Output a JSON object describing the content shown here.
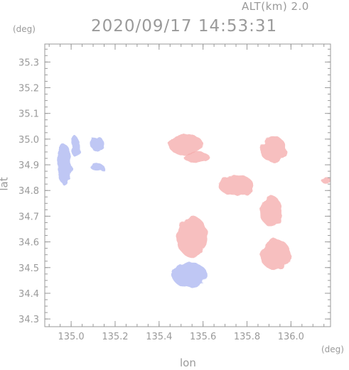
{
  "header": {
    "altitude_label": "ALT(km)  2.0",
    "timestamp": "2020/09/17 14:53:31"
  },
  "axes": {
    "y_unit": "(deg)",
    "x_unit": "(deg)",
    "x_title": "lon",
    "y_title": "lat"
  },
  "chart_data": {
    "type": "heatmap",
    "xlabel": "lon",
    "ylabel": "lat",
    "xlim": [
      134.88,
      136.18
    ],
    "ylim": [
      34.27,
      35.37
    ],
    "x_ticks": [
      135.0,
      135.2,
      135.4,
      135.6,
      135.8,
      136.0
    ],
    "x_tick_labels": [
      "135.0",
      "135.2",
      "135.4",
      "135.6",
      "135.8",
      "136.0"
    ],
    "y_ticks": [
      34.3,
      34.4,
      34.5,
      34.6,
      34.7,
      34.8,
      34.9,
      35.0,
      35.1,
      35.2,
      35.3
    ],
    "y_tick_labels": [
      "34.3",
      "34.4",
      "34.5",
      "34.6",
      "34.7",
      "34.8",
      "34.9",
      "35.0",
      "35.1",
      "35.2",
      "35.3"
    ],
    "grid": false,
    "colors": {
      "positive": "#f4a9a9",
      "negative": "#aab4f0"
    },
    "regions": [
      {
        "lon": 134.97,
        "lat": 34.9,
        "rlon": 0.03,
        "rlat": 0.08,
        "sign": "negative"
      },
      {
        "lon": 135.02,
        "lat": 34.97,
        "rlon": 0.02,
        "rlat": 0.04,
        "sign": "negative"
      },
      {
        "lon": 135.12,
        "lat": 34.98,
        "rlon": 0.03,
        "rlat": 0.03,
        "sign": "negative"
      },
      {
        "lon": 135.12,
        "lat": 34.89,
        "rlon": 0.03,
        "rlat": 0.015,
        "sign": "negative"
      },
      {
        "lon": 135.52,
        "lat": 34.98,
        "rlon": 0.08,
        "rlat": 0.04,
        "sign": "positive"
      },
      {
        "lon": 135.57,
        "lat": 34.93,
        "rlon": 0.06,
        "rlat": 0.02,
        "sign": "positive"
      },
      {
        "lon": 135.92,
        "lat": 34.96,
        "rlon": 0.06,
        "rlat": 0.05,
        "sign": "positive"
      },
      {
        "lon": 135.91,
        "lat": 34.72,
        "rlon": 0.05,
        "rlat": 0.06,
        "sign": "positive"
      },
      {
        "lon": 135.93,
        "lat": 34.55,
        "rlon": 0.07,
        "rlat": 0.06,
        "sign": "positive"
      },
      {
        "lon": 135.55,
        "lat": 34.62,
        "rlon": 0.07,
        "rlat": 0.08,
        "sign": "positive"
      },
      {
        "lon": 135.54,
        "lat": 34.47,
        "rlon": 0.08,
        "rlat": 0.05,
        "sign": "negative"
      },
      {
        "lon": 135.75,
        "lat": 34.82,
        "rlon": 0.08,
        "rlat": 0.04,
        "sign": "positive"
      },
      {
        "lon": 136.16,
        "lat": 34.84,
        "rlon": 0.02,
        "rlat": 0.015,
        "sign": "positive"
      }
    ]
  }
}
